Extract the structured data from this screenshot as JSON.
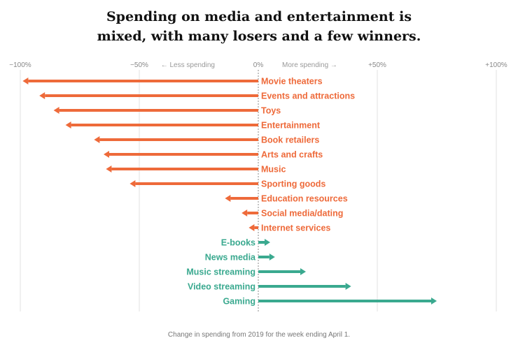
{
  "title_lines": [
    "Spending on media and entertainment is",
    "mixed, with many losers and a few winners."
  ],
  "caption": "Change in spending from 2019 for the week ending April 1.",
  "colors": {
    "negative": "#ee6a3a",
    "positive": "#3aa98f"
  },
  "chart_data": {
    "type": "bar",
    "orientation": "horizontal",
    "title": "Spending on media and entertainment is mixed, with many losers and a few winners.",
    "xlabel": "Change in spending from 2019 for the week ending April 1.",
    "xlim": [
      -100,
      100
    ],
    "ticks": [
      {
        "value": -100,
        "label": "−100%"
      },
      {
        "value": -50,
        "label": "−50%"
      },
      {
        "value": 0,
        "label": "0%"
      },
      {
        "value": 50,
        "label": "+50%"
      },
      {
        "value": 100,
        "label": "+100%"
      }
    ],
    "direction_labels": {
      "left": "← Less spending",
      "right": "More spending →"
    },
    "categories": [
      "Movie theaters",
      "Events and attractions",
      "Toys",
      "Entertainment",
      "Book retailers",
      "Arts and crafts",
      "Music",
      "Sporting goods",
      "Education resources",
      "Social media/dating",
      "Internet services",
      "E-books",
      "News media",
      "Music streaming",
      "Video streaming",
      "Gaming"
    ],
    "values": [
      -99,
      -92,
      -86,
      -81,
      -69,
      -65,
      -64,
      -54,
      -14,
      -7,
      -4,
      5,
      7,
      20,
      39,
      75
    ]
  }
}
